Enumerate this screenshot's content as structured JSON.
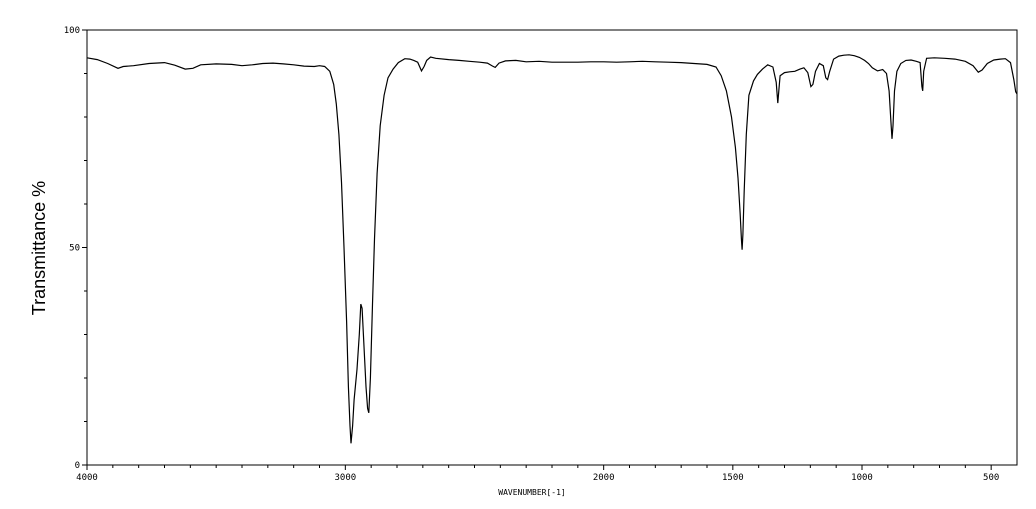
{
  "chart_data": {
    "type": "line",
    "title": "",
    "xlabel": "WAVENUMBER[-1]",
    "ylabel": "Transmittance %",
    "xlim": [
      4000,
      400
    ],
    "ylim": [
      0,
      100
    ],
    "x_reversed": true,
    "grid": false,
    "x_ticks": [
      4000,
      3000,
      2000,
      1500,
      1000,
      500
    ],
    "x_tick_labels": [
      "4000",
      "3000",
      "2000",
      "1500",
      "1000",
      "500"
    ],
    "y_ticks": [
      0,
      50,
      100
    ],
    "y_tick_labels": [
      "0",
      "50",
      "100"
    ],
    "line_color": "#000000",
    "series": [
      {
        "points": [
          [
            4000,
            93.6
          ],
          [
            3960,
            93.2
          ],
          [
            3920,
            92.3
          ],
          [
            3880,
            91.2
          ],
          [
            3860,
            91.6
          ],
          [
            3820,
            91.8
          ],
          [
            3760,
            92.3
          ],
          [
            3700,
            92.5
          ],
          [
            3660,
            91.9
          ],
          [
            3620,
            91.0
          ],
          [
            3590,
            91.2
          ],
          [
            3560,
            92.0
          ],
          [
            3500,
            92.2
          ],
          [
            3440,
            92.1
          ],
          [
            3400,
            91.8
          ],
          [
            3360,
            92.0
          ],
          [
            3320,
            92.3
          ],
          [
            3280,
            92.4
          ],
          [
            3240,
            92.2
          ],
          [
            3200,
            92.0
          ],
          [
            3160,
            91.7
          ],
          [
            3120,
            91.6
          ],
          [
            3100,
            91.8
          ],
          [
            3080,
            91.6
          ],
          [
            3060,
            90.5
          ],
          [
            3045,
            87.5
          ],
          [
            3035,
            83.0
          ],
          [
            3025,
            76.0
          ],
          [
            3015,
            65.0
          ],
          [
            3005,
            50.0
          ],
          [
            2995,
            33.0
          ],
          [
            2988,
            18.0
          ],
          [
            2982,
            9.0
          ],
          [
            2978,
            5.0
          ],
          [
            2972,
            9.0
          ],
          [
            2966,
            15.0
          ],
          [
            2955,
            22.0
          ],
          [
            2946,
            30.0
          ],
          [
            2940,
            37.0
          ],
          [
            2935,
            36.0
          ],
          [
            2930,
            30.0
          ],
          [
            2925,
            24.0
          ],
          [
            2920,
            18.0
          ],
          [
            2914,
            13.0
          ],
          [
            2909,
            12.0
          ],
          [
            2903,
            20.0
          ],
          [
            2895,
            37.0
          ],
          [
            2887,
            52.0
          ],
          [
            2877,
            67.0
          ],
          [
            2865,
            78.0
          ],
          [
            2850,
            85.0
          ],
          [
            2835,
            89.0
          ],
          [
            2815,
            91.0
          ],
          [
            2795,
            92.5
          ],
          [
            2770,
            93.4
          ],
          [
            2750,
            93.3
          ],
          [
            2735,
            93.0
          ],
          [
            2720,
            92.6
          ],
          [
            2705,
            90.6
          ],
          [
            2695,
            91.6
          ],
          [
            2685,
            93.0
          ],
          [
            2670,
            93.8
          ],
          [
            2650,
            93.5
          ],
          [
            2600,
            93.2
          ],
          [
            2560,
            93.0
          ],
          [
            2520,
            92.8
          ],
          [
            2480,
            92.6
          ],
          [
            2450,
            92.4
          ],
          [
            2430,
            91.7
          ],
          [
            2420,
            91.4
          ],
          [
            2405,
            92.4
          ],
          [
            2380,
            92.9
          ],
          [
            2340,
            93.0
          ],
          [
            2300,
            92.7
          ],
          [
            2250,
            92.8
          ],
          [
            2200,
            92.6
          ],
          [
            2150,
            92.6
          ],
          [
            2100,
            92.6
          ],
          [
            2050,
            92.7
          ],
          [
            2000,
            92.7
          ],
          [
            1950,
            92.6
          ],
          [
            1900,
            92.7
          ],
          [
            1850,
            92.8
          ],
          [
            1800,
            92.7
          ],
          [
            1750,
            92.6
          ],
          [
            1700,
            92.5
          ],
          [
            1650,
            92.3
          ],
          [
            1600,
            92.1
          ],
          [
            1565,
            91.5
          ],
          [
            1545,
            89.5
          ],
          [
            1525,
            86.0
          ],
          [
            1505,
            80.0
          ],
          [
            1490,
            73.0
          ],
          [
            1480,
            66.0
          ],
          [
            1472,
            58.0
          ],
          [
            1467,
            52.0
          ],
          [
            1464,
            49.5
          ],
          [
            1461,
            53.0
          ],
          [
            1456,
            63.0
          ],
          [
            1448,
            76.0
          ],
          [
            1438,
            85.0
          ],
          [
            1420,
            88.3
          ],
          [
            1405,
            89.8
          ],
          [
            1385,
            91.0
          ],
          [
            1365,
            92.0
          ],
          [
            1345,
            91.5
          ],
          [
            1332,
            88.0
          ],
          [
            1326,
            83.2
          ],
          [
            1322,
            86.0
          ],
          [
            1317,
            89.5
          ],
          [
            1300,
            90.2
          ],
          [
            1280,
            90.4
          ],
          [
            1260,
            90.5
          ],
          [
            1240,
            91.0
          ],
          [
            1225,
            91.3
          ],
          [
            1210,
            90.2
          ],
          [
            1198,
            87.0
          ],
          [
            1190,
            87.5
          ],
          [
            1180,
            90.5
          ],
          [
            1165,
            92.3
          ],
          [
            1150,
            91.8
          ],
          [
            1140,
            89.0
          ],
          [
            1133,
            88.6
          ],
          [
            1125,
            90.5
          ],
          [
            1110,
            93.3
          ],
          [
            1090,
            94.0
          ],
          [
            1070,
            94.2
          ],
          [
            1050,
            94.3
          ],
          [
            1030,
            94.1
          ],
          [
            1010,
            93.7
          ],
          [
            990,
            93.0
          ],
          [
            975,
            92.3
          ],
          [
            960,
            91.3
          ],
          [
            940,
            90.6
          ],
          [
            920,
            90.9
          ],
          [
            905,
            90.0
          ],
          [
            895,
            86.0
          ],
          [
            888,
            79.0
          ],
          [
            884,
            75.0
          ],
          [
            880,
            78.0
          ],
          [
            874,
            86.0
          ],
          [
            865,
            90.5
          ],
          [
            850,
            92.3
          ],
          [
            830,
            93.0
          ],
          [
            810,
            93.1
          ],
          [
            790,
            92.8
          ],
          [
            775,
            92.5
          ],
          [
            768,
            87.0
          ],
          [
            765,
            86.0
          ],
          [
            761,
            90.5
          ],
          [
            750,
            93.5
          ],
          [
            720,
            93.6
          ],
          [
            680,
            93.5
          ],
          [
            640,
            93.3
          ],
          [
            600,
            92.8
          ],
          [
            570,
            91.8
          ],
          [
            550,
            90.3
          ],
          [
            535,
            90.8
          ],
          [
            515,
            92.3
          ],
          [
            490,
            93.1
          ],
          [
            465,
            93.3
          ],
          [
            445,
            93.4
          ],
          [
            425,
            92.5
          ],
          [
            412,
            88.5
          ],
          [
            405,
            85.8
          ],
          [
            400,
            85.3
          ]
        ]
      }
    ]
  }
}
